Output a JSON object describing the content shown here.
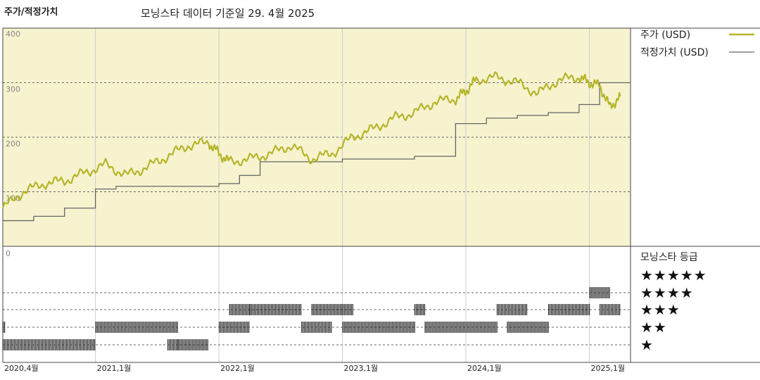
{
  "header": {
    "title": "주가/적정가치",
    "data_date": "모닝스타 데이터 기준일 29. 4월 2025"
  },
  "legend": {
    "price_label": "주가 (USD)",
    "fair_label": "적정가치 (USD)",
    "rating_title": "모닝스타 등급"
  },
  "colors": {
    "price": "#b5b52a",
    "fair": "#666666",
    "panel_bg": "#f7f3cf",
    "grid": "#666666"
  },
  "rating_labels": [
    "★★★★★",
    "★★★★",
    "★★★",
    "★★",
    "★"
  ],
  "chart_data": {
    "type": "line",
    "x_tick_labels": [
      "2020,4월",
      "2021,1월",
      "2022,1월",
      "2023,1월",
      "2024,1월",
      "2025,1월"
    ],
    "y_tick_labels": [
      "400",
      "300",
      "200",
      "100",
      "0"
    ],
    "ylim": [
      0,
      400
    ],
    "x_range": [
      "2020-04",
      "2025-04"
    ],
    "series": [
      {
        "name": "주가 (USD)",
        "x": [
          "2020-04",
          "2020-06",
          "2020-08",
          "2020-10",
          "2020-12",
          "2021-02",
          "2021-04",
          "2021-06",
          "2021-08",
          "2021-10",
          "2021-12",
          "2022-01",
          "2022-02",
          "2022-04",
          "2022-06",
          "2022-08",
          "2022-10",
          "2022-12",
          "2023-02",
          "2023-04",
          "2023-06",
          "2023-08",
          "2023-10",
          "2023-12",
          "2024-01",
          "2024-02",
          "2024-04",
          "2024-06",
          "2024-08",
          "2024-10",
          "2024-12",
          "2025-01",
          "2025-02",
          "2025-03",
          "2025-04"
        ],
        "values": [
          70,
          100,
          115,
          120,
          135,
          150,
          130,
          145,
          165,
          185,
          190,
          170,
          155,
          160,
          170,
          185,
          160,
          170,
          200,
          215,
          235,
          245,
          265,
          270,
          285,
          305,
          310,
          300,
          280,
          305,
          310,
          300,
          295,
          255,
          275
        ]
      },
      {
        "name": "적정가치 (USD)",
        "x": [
          "2020-04",
          "2020-07",
          "2020-10",
          "2021-01",
          "2021-03",
          "2022-01",
          "2022-03",
          "2022-05",
          "2023-01",
          "2023-08",
          "2023-12",
          "2024-03",
          "2024-06",
          "2024-09",
          "2024-12",
          "2025-02",
          "2025-04"
        ],
        "values": [
          47,
          55,
          70,
          105,
          110,
          115,
          130,
          155,
          160,
          165,
          225,
          235,
          240,
          245,
          260,
          300,
          300
        ]
      }
    ]
  },
  "rating_data": {
    "type": "table",
    "rows": [
      "5",
      "4",
      "3",
      "2",
      "1"
    ],
    "periods": [
      {
        "from": "2020-04",
        "to": "2020-04",
        "rating": 2
      },
      {
        "from": "2020-04",
        "to": "2021-01",
        "rating": 1
      },
      {
        "from": "2021-01",
        "to": "2021-09",
        "rating": 2
      },
      {
        "from": "2021-08",
        "to": "2021-09",
        "rating": 1
      },
      {
        "from": "2021-09",
        "to": "2021-12",
        "rating": 1
      },
      {
        "from": "2022-01",
        "to": "2022-04",
        "rating": 2
      },
      {
        "from": "2022-02",
        "to": "2022-04",
        "rating": 3
      },
      {
        "from": "2022-04",
        "to": "2022-09",
        "rating": 3
      },
      {
        "from": "2022-09",
        "to": "2022-12",
        "rating": 2
      },
      {
        "from": "2022-10",
        "to": "2023-02",
        "rating": 3
      },
      {
        "from": "2023-01",
        "to": "2023-08",
        "rating": 2
      },
      {
        "from": "2023-08",
        "to": "2023-09",
        "rating": 3
      },
      {
        "from": "2023-09",
        "to": "2024-04",
        "rating": 2
      },
      {
        "from": "2024-04",
        "to": "2024-07",
        "rating": 3
      },
      {
        "from": "2024-05",
        "to": "2024-09",
        "rating": 2
      },
      {
        "from": "2024-09",
        "to": "2025-01",
        "rating": 3
      },
      {
        "from": "2025-01",
        "to": "2025-03",
        "rating": 4
      },
      {
        "from": "2025-02",
        "to": "2025-04",
        "rating": 3
      }
    ]
  }
}
